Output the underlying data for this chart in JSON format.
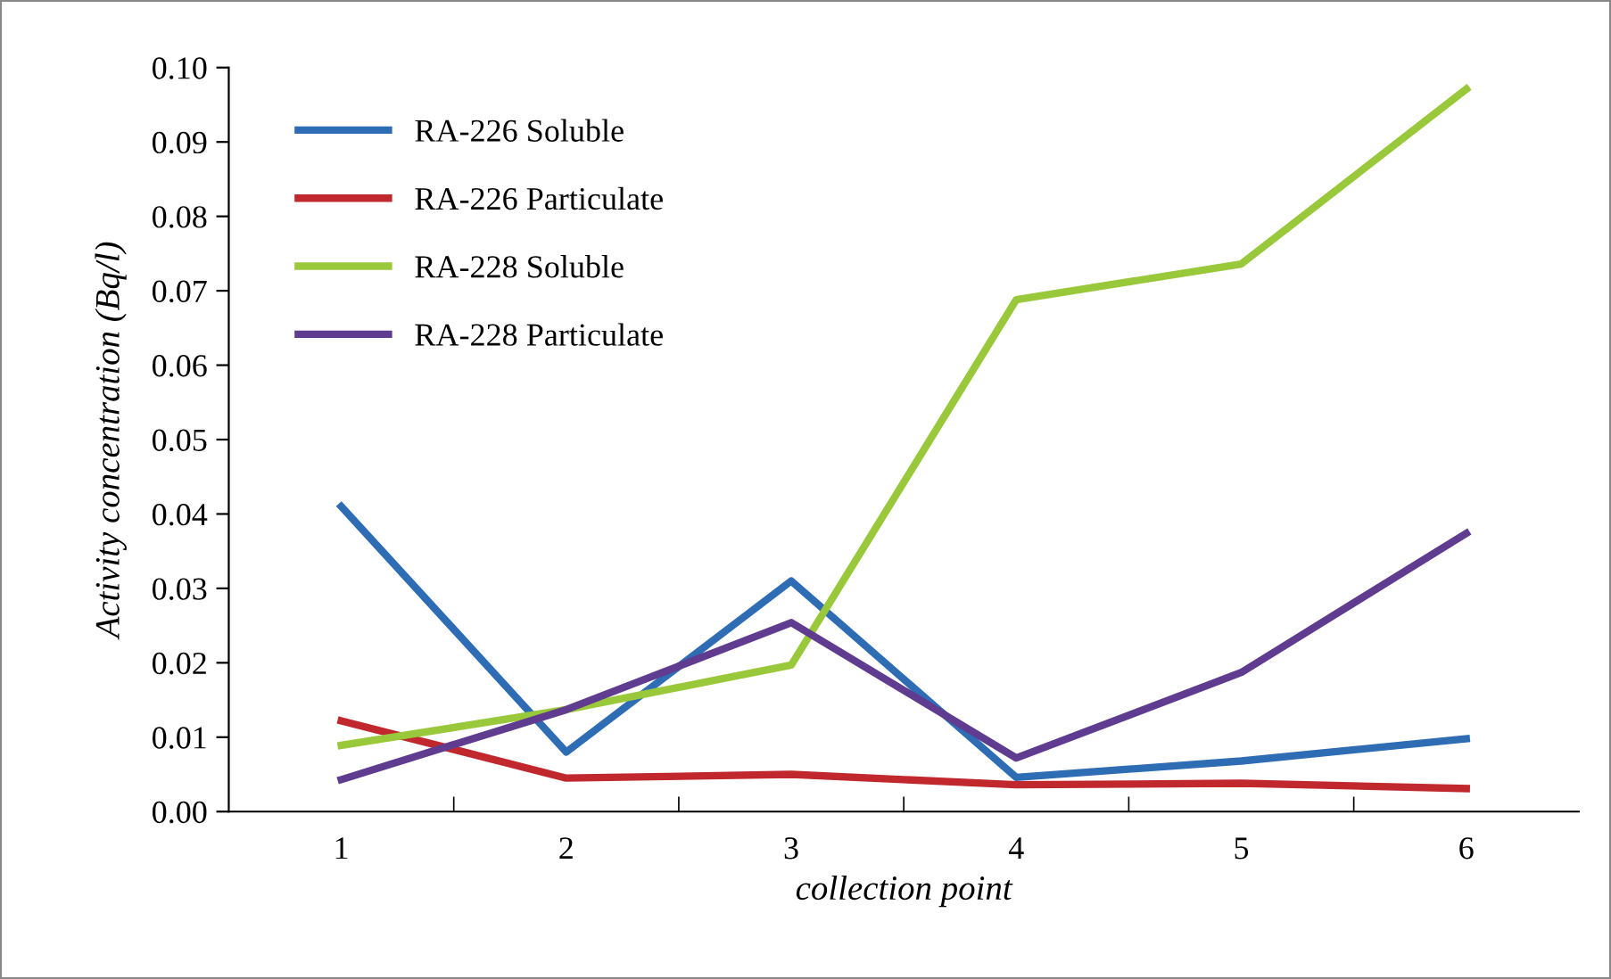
{
  "chart_data": {
    "type": "line",
    "xlabel": "collection point",
    "ylabel": "Activity concentration (Bq/l)",
    "categories": [
      "1",
      "2",
      "3",
      "4",
      "5",
      "6"
    ],
    "series": [
      {
        "name": "RA-226 Soluble",
        "color": "#2e6db4",
        "values": [
          0.041,
          0.008,
          0.031,
          0.0046,
          0.0068,
          0.0098
        ]
      },
      {
        "name": "RA-226 Particulate",
        "color": "#c0282d",
        "values": [
          0.0122,
          0.0045,
          0.005,
          0.0036,
          0.0038,
          0.0031
        ]
      },
      {
        "name": "RA-228 Soluble",
        "color": "#99c83a",
        "values": [
          0.0089,
          0.0137,
          0.0197,
          0.0688,
          0.0736,
          0.0971
        ]
      },
      {
        "name": "RA-228 Particulate",
        "color": "#5f3c8f",
        "values": [
          0.0043,
          0.0137,
          0.0254,
          0.0072,
          0.0187,
          0.0374
        ]
      }
    ],
    "ylim": [
      0,
      0.1
    ],
    "yticks": [
      {
        "value": 0,
        "label": "0.00"
      },
      {
        "value": 0.01,
        "label": "0.01"
      },
      {
        "value": 0.02,
        "label": "0.02"
      },
      {
        "value": 0.03,
        "label": "0.03"
      },
      {
        "value": 0.04,
        "label": "0.04"
      },
      {
        "value": 0.05,
        "label": "0.05"
      },
      {
        "value": 0.06,
        "label": "0.06"
      },
      {
        "value": 0.07,
        "label": "0.07"
      },
      {
        "value": 0.08,
        "label": "0.08"
      },
      {
        "value": 0.09,
        "label": "0.09"
      },
      {
        "value": 0.1,
        "label": "0.10"
      }
    ],
    "grid": false,
    "legend": "top left",
    "marker": "none",
    "line_style": "solid"
  }
}
